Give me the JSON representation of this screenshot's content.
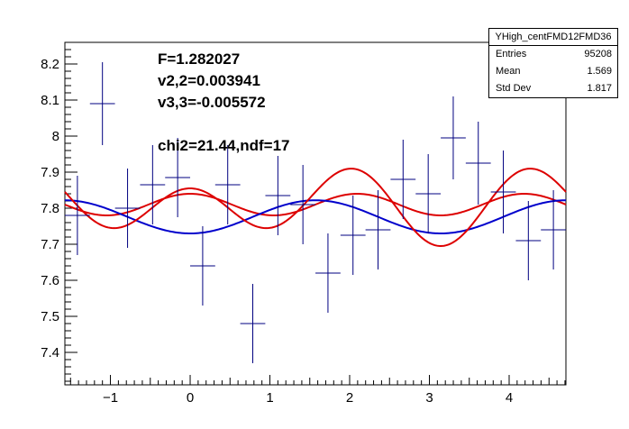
{
  "chart_data": {
    "type": "scatter",
    "title": "",
    "xlabel": "",
    "ylabel": "",
    "xlim": [
      -1.571,
      4.712
    ],
    "ylim": [
      7.31,
      8.26
    ],
    "x_ticks": [
      -1,
      0,
      1,
      2,
      3,
      4
    ],
    "y_ticks": [
      7.4,
      7.5,
      7.6,
      7.7,
      7.8,
      7.9,
      8,
      8.1,
      8.2
    ],
    "y_tick_labels": [
      "7.4",
      "7.5",
      "7.6",
      "7.7",
      "7.8",
      "7.9",
      "8",
      "8.1",
      "8.2"
    ],
    "grid": false,
    "points": {
      "x": [
        -1.414,
        -1.1,
        -0.785,
        -0.471,
        -0.157,
        0.157,
        0.471,
        0.785,
        1.1,
        1.414,
        1.728,
        2.042,
        2.356,
        2.67,
        2.985,
        3.299,
        3.613,
        3.927,
        4.241,
        4.555
      ],
      "y": [
        7.78,
        8.09,
        7.8,
        7.865,
        7.885,
        7.64,
        7.865,
        7.48,
        7.835,
        7.81,
        7.62,
        7.725,
        7.74,
        7.88,
        7.84,
        7.995,
        7.925,
        7.845,
        7.71,
        7.74
      ],
      "yerr": [
        0.11,
        0.115,
        0.11,
        0.11,
        0.11,
        0.11,
        0.11,
        0.11,
        0.11,
        0.11,
        0.11,
        0.11,
        0.11,
        0.11,
        0.11,
        0.115,
        0.115,
        0.115,
        0.11,
        0.11
      ],
      "xerr": 0.157,
      "color": "#000080"
    },
    "fits": {
      "blue": {
        "color": "#0000cc",
        "const": 7.776,
        "a2": -0.046,
        "a3": 0.0,
        "phase3": 0.0
      },
      "red_const_v3": {
        "color": "#dd0000",
        "const": 7.81,
        "a2": 0.0,
        "a3": 0.03,
        "phase3": 0.0
      },
      "red_full": {
        "color": "#dd0000",
        "const": 7.81,
        "a2": -0.035,
        "a3": 0.08,
        "phase3": 0.0
      }
    },
    "stats": {
      "title": "YHigh_centFMD12FMD36",
      "rows": [
        {
          "label": "Entries",
          "value": "95208"
        },
        {
          "label": "Mean",
          "value": "1.569"
        },
        {
          "label": "Std Dev",
          "value": "1.817"
        }
      ]
    },
    "annotations": {
      "F": "F=1.282027",
      "v22": "v2,2=0.003941",
      "v33": "v3,3=-0.005572",
      "chi2": "chi2=21.44,ndf=17"
    }
  }
}
